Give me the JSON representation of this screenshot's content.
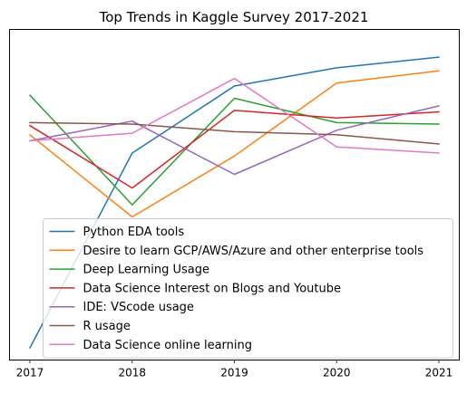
{
  "chart_data": {
    "type": "line",
    "title": "Top Trends in Kaggle Survey 2017-2021",
    "xlabel": "",
    "ylabel": "",
    "x": [
      "2017",
      "2018",
      "2019",
      "2020",
      "2021"
    ],
    "ylim": [
      0,
      1
    ],
    "y_ticks_shown": false,
    "grid": false,
    "legend_position": "lower-center",
    "series": [
      {
        "name": "Python EDA tools",
        "color": "#1f77b4",
        "values": [
          0.0,
          0.64,
          0.86,
          0.92,
          0.955
        ]
      },
      {
        "name": "Desire to learn GCP/AWS/Azure and other enterprise tools",
        "color": "#ff7f0e",
        "values": [
          0.7,
          0.43,
          0.63,
          0.87,
          0.91
        ]
      },
      {
        "name": "Deep Learning Usage",
        "color": "#2ca02c",
        "values": [
          0.83,
          0.47,
          0.82,
          0.74,
          0.735
        ]
      },
      {
        "name": "Data Science Interest on Blogs and Youtube",
        "color": "#d62728",
        "values": [
          0.73,
          0.525,
          0.78,
          0.755,
          0.775
        ]
      },
      {
        "name": "IDE: VScode usage",
        "color": "#9467bd",
        "values": [
          0.68,
          0.745,
          0.57,
          0.715,
          0.795
        ]
      },
      {
        "name": "R usage",
        "color": "#8c564b",
        "values": [
          0.74,
          0.735,
          0.71,
          0.7,
          0.67
        ]
      },
      {
        "name": "Data Science online learning",
        "color": "#e377c2",
        "values": [
          0.68,
          0.705,
          0.885,
          0.66,
          0.64
        ]
      }
    ]
  }
}
